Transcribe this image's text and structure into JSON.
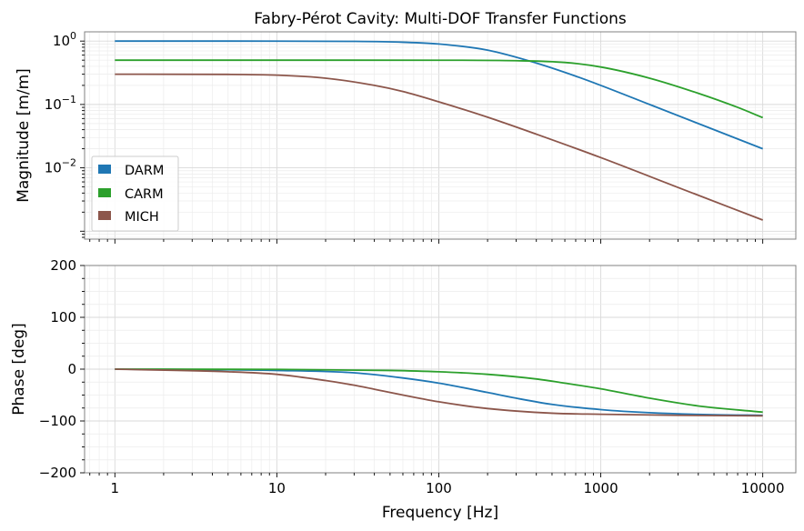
{
  "chart_data": {
    "type": "line",
    "title": "Fabry-Pérot Cavity: Multi-DOF Transfer Functions",
    "xlabel": "Frequency [Hz]",
    "x_scale": "log",
    "xlim": [
      0.65,
      16000
    ],
    "x_ticks": [
      1,
      10,
      100,
      1000,
      10000
    ],
    "x_tick_labels": [
      "1",
      "10",
      "100",
      "1000",
      "10000"
    ],
    "grid": true,
    "legend_location": "lower-left (magnitude panel)",
    "colors": {
      "DARM": "#1f77b4",
      "CARM": "#2ca02c",
      "MICH": "#8c564b"
    },
    "panels": [
      {
        "ylabel": "Magnitude [m/m]",
        "y_scale": "log",
        "ylim": [
          0.00075,
          1.4
        ],
        "y_ticks": [
          0.01,
          0.1,
          1
        ],
        "y_tick_labels": [
          {
            "base": "10",
            "exp": "−2"
          },
          {
            "base": "10",
            "exp": "−1"
          },
          {
            "base": "10",
            "exp": "0"
          }
        ],
        "series": [
          {
            "name": "DARM",
            "x": [
              1,
              10,
              30,
              60,
              100,
              200,
              400,
              700,
              1000,
              2000,
              5000,
              10000
            ],
            "y": [
              1.0,
              0.999,
              0.99,
              0.96,
              0.9,
              0.72,
              0.45,
              0.28,
              0.2,
              0.1,
              0.04,
              0.02
            ]
          },
          {
            "name": "CARM",
            "x": [
              1,
              10,
              100,
              300,
              600,
              1000,
              2000,
              4000,
              7000,
              10000
            ],
            "y": [
              0.5,
              0.5,
              0.499,
              0.49,
              0.46,
              0.39,
              0.26,
              0.15,
              0.09,
              0.062
            ]
          },
          {
            "name": "MICH",
            "x": [
              1,
              5,
              10,
              20,
              40,
              60,
              100,
              200,
              400,
              1000,
              3000,
              10000
            ],
            "y": [
              0.3,
              0.298,
              0.29,
              0.26,
              0.2,
              0.16,
              0.11,
              0.063,
              0.034,
              0.0145,
              0.0049,
              0.0015
            ]
          }
        ]
      },
      {
        "ylabel": "Phase [deg]",
        "y_scale": "linear",
        "ylim": [
          -200,
          200
        ],
        "y_ticks": [
          -200,
          -100,
          0,
          100,
          200
        ],
        "y_tick_labels": [
          "−200",
          "−100",
          "0",
          "100",
          "200"
        ],
        "series": [
          {
            "name": "DARM",
            "x": [
              1,
              10,
              30,
              60,
              100,
              200,
              300,
              500,
              1000,
              2000,
              5000,
              10000
            ],
            "y": [
              0,
              -2.5,
              -7,
              -17,
              -27,
              -45,
              -56,
              -68,
              -78,
              -84,
              -88,
              -89
            ]
          },
          {
            "name": "CARM",
            "x": [
              1,
              10,
              50,
              100,
              200,
              400,
              600,
              1000,
              2000,
              4000,
              10000
            ],
            "y": [
              0,
              -0.5,
              -2.5,
              -5,
              -10,
              -19,
              -27,
              -38,
              -56,
              -71,
              -83
            ]
          },
          {
            "name": "MICH",
            "x": [
              1,
              5,
              10,
              20,
              30,
              50,
              100,
              200,
              500,
              1000,
              3000,
              10000
            ],
            "y": [
              0,
              -5,
              -10,
              -22,
              -31,
              -45,
              -63,
              -76,
              -85,
              -87,
              -89,
              -90
            ]
          }
        ]
      }
    ]
  }
}
